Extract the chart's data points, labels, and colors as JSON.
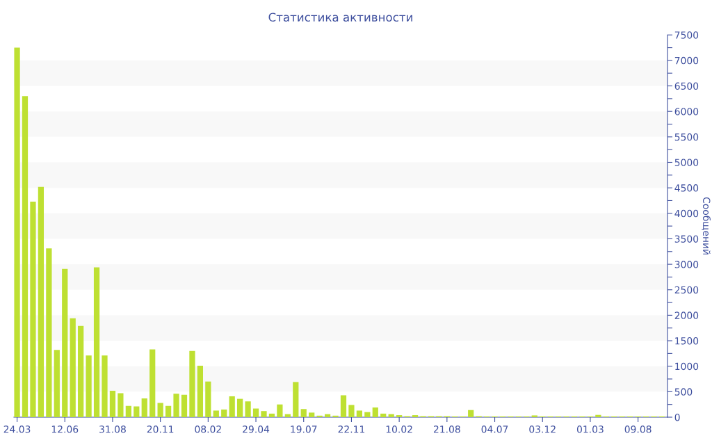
{
  "chart_data": {
    "type": "bar",
    "title": "Статистика активности",
    "ylabel": "Сообщений",
    "categories": [
      "24.03",
      null,
      null,
      null,
      null,
      null,
      "12.06",
      null,
      null,
      null,
      null,
      null,
      "31.08",
      null,
      null,
      null,
      null,
      null,
      "20.11",
      null,
      null,
      null,
      null,
      null,
      "08.02",
      null,
      null,
      null,
      null,
      null,
      "29.04",
      null,
      null,
      null,
      null,
      null,
      "19.07",
      null,
      null,
      null,
      null,
      null,
      "22.11",
      null,
      null,
      null,
      null,
      null,
      "10.02",
      null,
      null,
      null,
      null,
      null,
      "21.08",
      null,
      null,
      null,
      null,
      null,
      "04.07",
      null,
      null,
      null,
      null,
      null,
      "03.12",
      null,
      null,
      null,
      null,
      null,
      "01.03",
      null,
      null,
      null,
      null,
      null,
      "09.08",
      null,
      null,
      null
    ],
    "values": [
      7250,
      6300,
      4230,
      4520,
      3310,
      1320,
      2910,
      1940,
      1790,
      1210,
      2940,
      1210,
      520,
      470,
      220,
      210,
      370,
      1330,
      280,
      220,
      460,
      440,
      1300,
      1010,
      700,
      130,
      150,
      410,
      360,
      310,
      170,
      120,
      70,
      250,
      60,
      690,
      160,
      90,
      30,
      60,
      30,
      430,
      240,
      130,
      100,
      190,
      70,
      60,
      40,
      20,
      40,
      20,
      20,
      20,
      20,
      15,
      15,
      140,
      20,
      15,
      15,
      15,
      15,
      15,
      15,
      35,
      15,
      15,
      15,
      15,
      15,
      15,
      15,
      45,
      15,
      15,
      15,
      15,
      15,
      15,
      15,
      15
    ],
    "color": "#bee032",
    "ylim": [
      0,
      7500
    ],
    "yticks": [
      0,
      {
        "value": 250,
        "label": null
      },
      500,
      {
        "value": 750,
        "label": null
      },
      1000,
      {
        "value": 1250,
        "label": null
      },
      1500,
      {
        "value": 1750,
        "label": null
      },
      2000,
      {
        "value": 2250,
        "label": null
      },
      2500,
      {
        "value": 2750,
        "label": null
      },
      3000,
      {
        "value": 3250,
        "label": null
      },
      3500,
      {
        "value": 3750,
        "label": null
      },
      4000,
      {
        "value": 4250,
        "label": null
      },
      4500,
      {
        "value": 4750,
        "label": null
      },
      5000,
      {
        "value": 5250,
        "label": null
      },
      5500,
      {
        "value": 5750,
        "label": null
      },
      6000,
      {
        "value": 6250,
        "label": null
      },
      6500,
      {
        "value": 6750,
        "label": null
      },
      7000,
      {
        "value": 7250,
        "label": null
      },
      7500
    ],
    "legend": false
  }
}
